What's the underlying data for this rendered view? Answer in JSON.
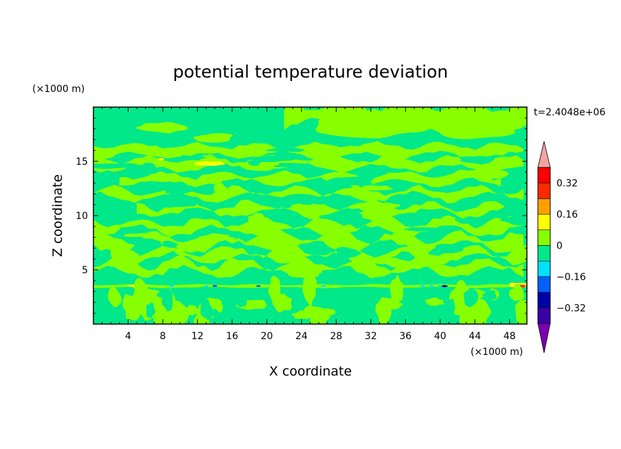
{
  "chart_data": {
    "type": "heatmap",
    "title": "potential temperature deviation",
    "time_label": "t=2.4048e+06",
    "xlabel": "X coordinate",
    "ylabel": "Z coordinate",
    "x_unit": "(×1000 m)",
    "y_unit": "(×1000 m)",
    "xlim": [
      0,
      50
    ],
    "ylim": [
      0,
      20
    ],
    "x_ticks": [
      4,
      8,
      12,
      16,
      20,
      24,
      28,
      32,
      36,
      40,
      44,
      48
    ],
    "y_ticks": [
      5,
      10,
      15
    ],
    "colorbar": {
      "levels": [
        -0.4,
        -0.32,
        -0.24,
        -0.16,
        -0.08,
        0,
        0.08,
        0.16,
        0.24,
        0.32,
        0.4
      ],
      "tick_labels": [
        "0.32",
        "0.16",
        "0",
        "−0.16",
        "−0.32"
      ],
      "tick_values": [
        0.32,
        0.16,
        0,
        -0.16,
        -0.32
      ],
      "colors": [
        "#7a00b0",
        "#3a00a8",
        "#0000a8",
        "#0060ff",
        "#00e0ff",
        "#00e88a",
        "#88ff00",
        "#ffff00",
        "#ffa000",
        "#ff2a00",
        "#ff0000",
        "#f4a3a3"
      ],
      "extend": "both"
    },
    "field_description_values": {
      "dominant_upper": [
        -0.08,
        0.08
      ],
      "max_value": 0.32,
      "min_value": -0.32
    }
  }
}
